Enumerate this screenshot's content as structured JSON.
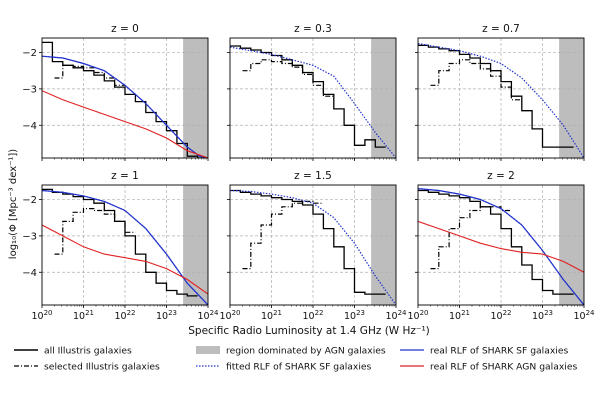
{
  "figure": {
    "ylabel": "log₁₀(Φ [Mpc⁻³ dex⁻¹])",
    "xlabel": "Specific Radio Luminosity at 1.4 GHz (W Hz⁻¹)",
    "legend": [
      {
        "label": "all Illustris galaxies",
        "style": "solid-black"
      },
      {
        "label": "selected Illustris galaxies",
        "style": "dashdot-black"
      },
      {
        "label": "region dominated by AGN galaxies",
        "style": "gray-patch"
      },
      {
        "label": "fitted RLF of SHARK SF galaxies",
        "style": "dotted-blue"
      },
      {
        "label": "real RLF of SHARK SF galaxies",
        "style": "solid-blue"
      },
      {
        "label": "real RLF of SHARK AGN galaxies",
        "style": "solid-red"
      }
    ],
    "colors": {
      "blue": "#2233cc",
      "red": "#e02020",
      "black": "#000000",
      "agn_region": "#bdbdbd",
      "grid": "#b0b0b0"
    }
  },
  "chart_data": [
    {
      "type": "line",
      "title": "z = 0",
      "xlim": [
        20,
        24
      ],
      "ylim": [
        -4.9,
        -1.6
      ],
      "x_ticks": [
        20,
        21,
        22,
        23,
        24
      ],
      "y_ticks": [
        -2,
        -3,
        -4
      ],
      "agn_region": [
        23.4,
        24
      ],
      "series": [
        {
          "name": "all Illustris galaxies",
          "style": "solid-black",
          "step": true,
          "x": [
            20.0,
            20.25,
            20.5,
            20.75,
            21.0,
            21.25,
            21.5,
            21.75,
            22.0,
            22.25,
            22.5,
            22.75,
            23.0,
            23.25,
            23.5,
            23.75
          ],
          "y": [
            -1.72,
            -2.25,
            -2.35,
            -2.42,
            -2.5,
            -2.62,
            -2.78,
            -2.95,
            -3.15,
            -3.35,
            -3.65,
            -3.9,
            -4.15,
            -4.5,
            -4.85,
            -4.9
          ]
        },
        {
          "name": "selected Illustris galaxies",
          "style": "dashdot-black",
          "step": true,
          "x": [
            20.3,
            20.5,
            20.75,
            21.0,
            21.25,
            21.5,
            21.75
          ],
          "y": [
            -2.7,
            -2.35,
            -2.38,
            -2.42,
            -2.55,
            -2.7,
            -2.9
          ]
        },
        {
          "name": "fitted RLF of SHARK SF galaxies",
          "style": "dotted-blue",
          "step": false,
          "x": [
            20.0,
            20.5,
            21.0,
            21.5,
            22.0,
            22.5,
            23.0,
            23.5,
            23.8,
            24.0
          ],
          "y": [
            -2.1,
            -2.15,
            -2.3,
            -2.5,
            -2.9,
            -3.4,
            -4.0,
            -4.6,
            -4.85,
            -4.9
          ]
        },
        {
          "name": "real RLF of SHARK SF galaxies",
          "style": "solid-blue",
          "step": false,
          "x": [
            20.0,
            20.5,
            21.0,
            21.5,
            22.0,
            22.5,
            23.0,
            23.5,
            23.8,
            24.0
          ],
          "y": [
            -2.1,
            -2.15,
            -2.3,
            -2.5,
            -2.9,
            -3.4,
            -4.0,
            -4.6,
            -4.85,
            -4.9
          ]
        },
        {
          "name": "real RLF of SHARK AGN galaxies",
          "style": "solid-red",
          "step": false,
          "x": [
            20.0,
            20.5,
            21.0,
            21.5,
            22.0,
            22.5,
            23.0,
            23.5,
            24.0
          ],
          "y": [
            -3.05,
            -3.3,
            -3.5,
            -3.7,
            -3.9,
            -4.1,
            -4.35,
            -4.7,
            -4.9
          ]
        }
      ]
    },
    {
      "type": "line",
      "title": "z = 0.3",
      "xlim": [
        20,
        24
      ],
      "ylim": [
        -4.9,
        -1.6
      ],
      "x_ticks": [
        20,
        21,
        22,
        23,
        24
      ],
      "y_ticks": [
        -2,
        -3,
        -4
      ],
      "agn_region": [
        23.4,
        24
      ],
      "series": [
        {
          "name": "all Illustris galaxies",
          "style": "solid-black",
          "step": true,
          "x": [
            20.0,
            20.25,
            20.5,
            20.75,
            21.0,
            21.25,
            21.5,
            21.75,
            22.0,
            22.25,
            22.5,
            22.75,
            23.0,
            23.25,
            23.5
          ],
          "y": [
            -1.82,
            -1.88,
            -1.93,
            -2.0,
            -2.08,
            -2.2,
            -2.35,
            -2.55,
            -2.8,
            -3.15,
            -3.55,
            -4.0,
            -4.55,
            -4.4,
            -4.6
          ]
        },
        {
          "name": "selected Illustris galaxies",
          "style": "dashdot-black",
          "step": true,
          "x": [
            20.3,
            20.5,
            20.75,
            21.0,
            21.25,
            21.5,
            21.75,
            22.0,
            22.25
          ],
          "y": [
            -2.5,
            -2.3,
            -2.2,
            -2.25,
            -2.3,
            -2.4,
            -2.6,
            -2.9,
            -3.2
          ]
        },
        {
          "name": "fitted RLF of SHARK SF galaxies",
          "style": "dotted-blue",
          "step": false,
          "x": [
            20.0,
            20.5,
            21.0,
            21.5,
            22.0,
            22.5,
            23.0,
            23.5,
            24.0
          ],
          "y": [
            -1.85,
            -1.95,
            -2.05,
            -2.2,
            -2.35,
            -2.65,
            -3.4,
            -4.2,
            -4.9
          ]
        }
      ]
    },
    {
      "type": "line",
      "title": "z = 0.7",
      "xlim": [
        20,
        24
      ],
      "ylim": [
        -4.9,
        -1.6
      ],
      "x_ticks": [
        20,
        21,
        22,
        23,
        24
      ],
      "y_ticks": [
        -2,
        -3,
        -4
      ],
      "agn_region": [
        23.4,
        24
      ],
      "series": [
        {
          "name": "all Illustris galaxies",
          "style": "solid-black",
          "step": true,
          "x": [
            20.0,
            20.25,
            20.5,
            20.75,
            21.0,
            21.25,
            21.5,
            21.75,
            22.0,
            22.25,
            22.5,
            22.75,
            23.0,
            23.25,
            23.5
          ],
          "y": [
            -1.8,
            -1.85,
            -1.9,
            -1.95,
            -2.05,
            -2.15,
            -2.3,
            -2.5,
            -2.8,
            -3.2,
            -3.6,
            -4.1,
            -4.6,
            -4.6,
            -4.6
          ]
        },
        {
          "name": "selected Illustris galaxies",
          "style": "dashdot-black",
          "step": true,
          "x": [
            20.3,
            20.5,
            20.75,
            21.0,
            21.25,
            21.5,
            21.75,
            22.0,
            22.25
          ],
          "y": [
            -2.9,
            -2.5,
            -2.3,
            -2.2,
            -2.3,
            -2.45,
            -2.65,
            -2.95,
            -3.3
          ]
        },
        {
          "name": "fitted RLF of SHARK SF galaxies",
          "style": "dotted-blue",
          "step": false,
          "x": [
            20.0,
            20.5,
            21.0,
            21.5,
            22.0,
            22.5,
            23.0,
            23.5,
            24.0
          ],
          "y": [
            -1.75,
            -1.85,
            -1.95,
            -2.1,
            -2.3,
            -2.7,
            -3.3,
            -4.0,
            -4.9
          ]
        }
      ]
    },
    {
      "type": "line",
      "title": "z = 1",
      "xlim": [
        20,
        24
      ],
      "ylim": [
        -4.9,
        -1.6
      ],
      "x_ticks": [
        20,
        21,
        22,
        23,
        24
      ],
      "y_ticks": [
        -2,
        -3,
        -4
      ],
      "agn_region": [
        23.4,
        24
      ],
      "series": [
        {
          "name": "all Illustris galaxies",
          "style": "solid-black",
          "step": true,
          "x": [
            20.0,
            20.25,
            20.5,
            20.75,
            21.0,
            21.25,
            21.5,
            21.75,
            22.0,
            22.25,
            22.5,
            22.75,
            23.0,
            23.25,
            23.5
          ],
          "y": [
            -1.72,
            -1.8,
            -1.85,
            -1.92,
            -2.0,
            -2.1,
            -2.3,
            -2.6,
            -3.0,
            -3.5,
            -4.0,
            -4.3,
            -4.5,
            -4.6,
            -4.65
          ]
        },
        {
          "name": "selected Illustris galaxies",
          "style": "dashdot-black",
          "step": true,
          "x": [
            20.3,
            20.5,
            20.75,
            21.0,
            21.25,
            21.5,
            21.75,
            22.0
          ],
          "y": [
            -3.5,
            -2.6,
            -2.35,
            -2.25,
            -2.3,
            -2.4,
            -2.6,
            -2.9
          ]
        },
        {
          "name": "fitted RLF of SHARK SF galaxies",
          "style": "dotted-blue",
          "step": false,
          "x": [
            20.0,
            20.5,
            21.0,
            21.5,
            22.0,
            22.5,
            23.0,
            23.5,
            24.0
          ],
          "y": [
            -1.75,
            -1.8,
            -1.9,
            -2.05,
            -2.3,
            -2.8,
            -3.5,
            -4.3,
            -4.9
          ]
        },
        {
          "name": "real RLF of SHARK SF galaxies",
          "style": "solid-blue",
          "step": false,
          "x": [
            20.0,
            20.5,
            21.0,
            21.5,
            22.0,
            22.5,
            23.0,
            23.5,
            24.0
          ],
          "y": [
            -1.75,
            -1.8,
            -1.9,
            -2.05,
            -2.3,
            -2.8,
            -3.5,
            -4.3,
            -4.9
          ]
        },
        {
          "name": "real RLF of SHARK AGN galaxies",
          "style": "solid-red",
          "step": false,
          "x": [
            20.0,
            20.5,
            21.0,
            21.5,
            22.0,
            22.5,
            23.0,
            23.5,
            24.0
          ],
          "y": [
            -2.7,
            -3.0,
            -3.3,
            -3.5,
            -3.6,
            -3.7,
            -3.9,
            -4.2,
            -4.6
          ]
        }
      ]
    },
    {
      "type": "line",
      "title": "z = 1.5",
      "xlim": [
        20,
        24
      ],
      "ylim": [
        -4.9,
        -1.6
      ],
      "x_ticks": [
        20,
        21,
        22,
        23,
        24
      ],
      "y_ticks": [
        -2,
        -3,
        -4
      ],
      "agn_region": [
        23.4,
        24
      ],
      "series": [
        {
          "name": "all Illustris galaxies",
          "style": "solid-black",
          "step": true,
          "x": [
            20.0,
            20.25,
            20.5,
            20.75,
            21.0,
            21.25,
            21.5,
            21.75,
            22.0,
            22.25,
            22.5,
            22.75,
            23.0,
            23.25,
            23.5
          ],
          "y": [
            -1.75,
            -1.8,
            -1.85,
            -1.9,
            -1.95,
            -2.0,
            -2.05,
            -2.15,
            -2.4,
            -2.8,
            -3.3,
            -3.9,
            -4.55,
            -4.6,
            -4.6
          ]
        },
        {
          "name": "selected Illustris galaxies",
          "style": "dashdot-black",
          "step": true,
          "x": [
            20.3,
            20.5,
            20.75,
            21.0,
            21.25,
            21.5,
            21.75,
            22.0
          ],
          "y": [
            -3.9,
            -3.2,
            -2.7,
            -2.4,
            -2.2,
            -2.1,
            -2.05,
            -2.1
          ]
        },
        {
          "name": "fitted RLF of SHARK SF galaxies",
          "style": "dotted-blue",
          "step": false,
          "x": [
            20.0,
            20.5,
            21.0,
            21.5,
            22.0,
            22.5,
            23.0,
            23.5,
            24.0
          ],
          "y": [
            -1.75,
            -1.78,
            -1.85,
            -1.95,
            -2.1,
            -2.5,
            -3.2,
            -4.1,
            -4.9
          ]
        }
      ]
    },
    {
      "type": "line",
      "title": "z = 2",
      "xlim": [
        20,
        24
      ],
      "ylim": [
        -4.9,
        -1.6
      ],
      "x_ticks": [
        20,
        21,
        22,
        23,
        24
      ],
      "y_ticks": [
        -2,
        -3,
        -4
      ],
      "agn_region": [
        23.4,
        24
      ],
      "series": [
        {
          "name": "all Illustris galaxies",
          "style": "solid-black",
          "step": true,
          "x": [
            20.0,
            20.25,
            20.5,
            20.75,
            21.0,
            21.25,
            21.5,
            21.75,
            22.0,
            22.25,
            22.5,
            22.75,
            23.0,
            23.25,
            23.5
          ],
          "y": [
            -1.75,
            -1.8,
            -1.85,
            -1.9,
            -1.95,
            -2.05,
            -2.2,
            -2.4,
            -2.8,
            -3.3,
            -3.8,
            -4.2,
            -4.5,
            -4.6,
            -4.6
          ]
        },
        {
          "name": "selected Illustris galaxies",
          "style": "dashdot-black",
          "step": true,
          "x": [
            20.3,
            20.5,
            20.75,
            21.0,
            21.25,
            21.5,
            21.75,
            22.0
          ],
          "y": [
            -3.9,
            -3.3,
            -2.8,
            -2.5,
            -2.3,
            -2.2,
            -2.2,
            -2.3
          ]
        },
        {
          "name": "fitted RLF of SHARK SF galaxies",
          "style": "dotted-blue",
          "step": false,
          "x": [
            20.0,
            20.5,
            21.0,
            21.5,
            22.0,
            22.5,
            23.0,
            23.5,
            24.0
          ],
          "y": [
            -1.7,
            -1.75,
            -1.85,
            -2.0,
            -2.25,
            -2.7,
            -3.4,
            -4.2,
            -4.9
          ]
        },
        {
          "name": "real RLF of SHARK SF galaxies",
          "style": "solid-blue",
          "step": false,
          "x": [
            20.0,
            20.5,
            21.0,
            21.5,
            22.0,
            22.5,
            23.0,
            23.5,
            24.0
          ],
          "y": [
            -1.7,
            -1.75,
            -1.85,
            -2.0,
            -2.25,
            -2.7,
            -3.4,
            -4.2,
            -4.9
          ]
        },
        {
          "name": "real RLF of SHARK AGN galaxies",
          "style": "solid-red",
          "step": false,
          "x": [
            20.0,
            20.5,
            21.0,
            21.5,
            22.0,
            22.5,
            23.0,
            23.5,
            24.0
          ],
          "y": [
            -2.6,
            -2.8,
            -3.0,
            -3.2,
            -3.35,
            -3.45,
            -3.5,
            -3.7,
            -4.0
          ]
        }
      ]
    }
  ]
}
